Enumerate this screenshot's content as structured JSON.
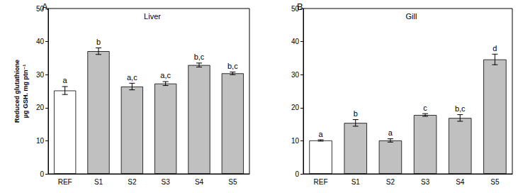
{
  "chart_data": [
    {
      "type": "bar",
      "panel_label": "A",
      "title": "Liver",
      "y_label": "Reduced glutathione\nµg GSH. mg ptn⁻¹",
      "categories": [
        "REF",
        "S1",
        "S2",
        "S3",
        "S4",
        "S5"
      ],
      "values": [
        25.2,
        37.1,
        26.4,
        27.3,
        32.9,
        30.4
      ],
      "errors": [
        1.2,
        1.0,
        1.0,
        0.6,
        0.6,
        0.4
      ],
      "annotations": [
        "a",
        "b",
        "a,c",
        "a,c",
        "b,c",
        "b,c"
      ],
      "colors": [
        "#ffffff",
        "#c0c0c0",
        "#c0c0c0",
        "#c0c0c0",
        "#c0c0c0",
        "#c0c0c0"
      ],
      "ylim": [
        0,
        50
      ],
      "yticks": [
        0,
        10,
        20,
        30,
        40,
        50
      ],
      "grid": false
    },
    {
      "type": "bar",
      "panel_label": "B",
      "title": "Gill",
      "categories": [
        "REF",
        "S1",
        "S2",
        "S3",
        "S4",
        "S5"
      ],
      "values": [
        10.1,
        15.4,
        10.1,
        17.8,
        16.9,
        34.6
      ],
      "errors": [
        0.2,
        1.0,
        0.5,
        0.4,
        1.0,
        1.6
      ],
      "annotations": [
        "a",
        "b",
        "a",
        "c",
        "b,c",
        "d"
      ],
      "colors": [
        "#ffffff",
        "#c0c0c0",
        "#c0c0c0",
        "#c0c0c0",
        "#c0c0c0",
        "#c0c0c0"
      ],
      "ylim": [
        0,
        50
      ],
      "yticks": [
        0,
        10,
        20,
        30,
        40,
        50
      ],
      "grid": false
    }
  ]
}
